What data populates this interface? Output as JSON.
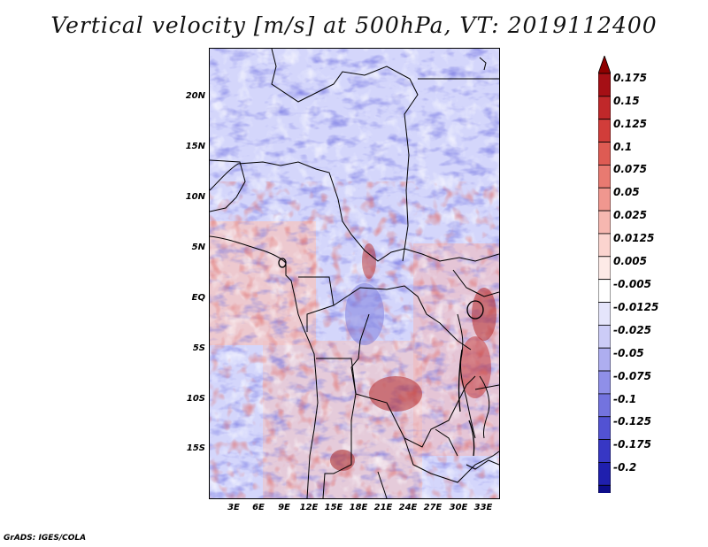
{
  "title": "Vertical velocity [m/s] at 500hPa, VT: 2019112400",
  "credit": "GrADS: IGES/COLA",
  "lat_ticks": [
    "20N",
    "15N",
    "10N",
    "5N",
    "EQ",
    "5S",
    "10S",
    "15S"
  ],
  "lon_ticks": [
    "3E",
    "6E",
    "9E",
    "12E",
    "15E",
    "18E",
    "21E",
    "24E",
    "27E",
    "30E",
    "33E"
  ],
  "colorbar": {
    "labels": [
      "0.175",
      "0.15",
      "0.125",
      "0.1",
      "0.075",
      "0.05",
      "0.025",
      "0.0125",
      "0.005",
      "-0.005",
      "-0.0125",
      "-0.025",
      "-0.05",
      "-0.075",
      "-0.1",
      "-0.125",
      "-0.175",
      "-0.2"
    ],
    "colors": [
      "#a50f15",
      "#c0282a",
      "#d13d3a",
      "#de5b53",
      "#e87a71",
      "#f0978f",
      "#f6b7b0",
      "#fbd4cf",
      "#fdeae7",
      "#ffffff",
      "#e5e5fb",
      "#ccccf7",
      "#aeaef0",
      "#8f8fe8",
      "#7373df",
      "#5252d3",
      "#3737c4",
      "#1f1fae",
      "#0d0d8a"
    ],
    "triangle_top_color": "#8e0000",
    "triangle_bottom_color": "#0a0a7a"
  },
  "colors": {
    "background_blue": "#d9dcff",
    "red_accent": "#e06a66",
    "blue_accent": "#6c6cdf",
    "border": "#000000"
  }
}
